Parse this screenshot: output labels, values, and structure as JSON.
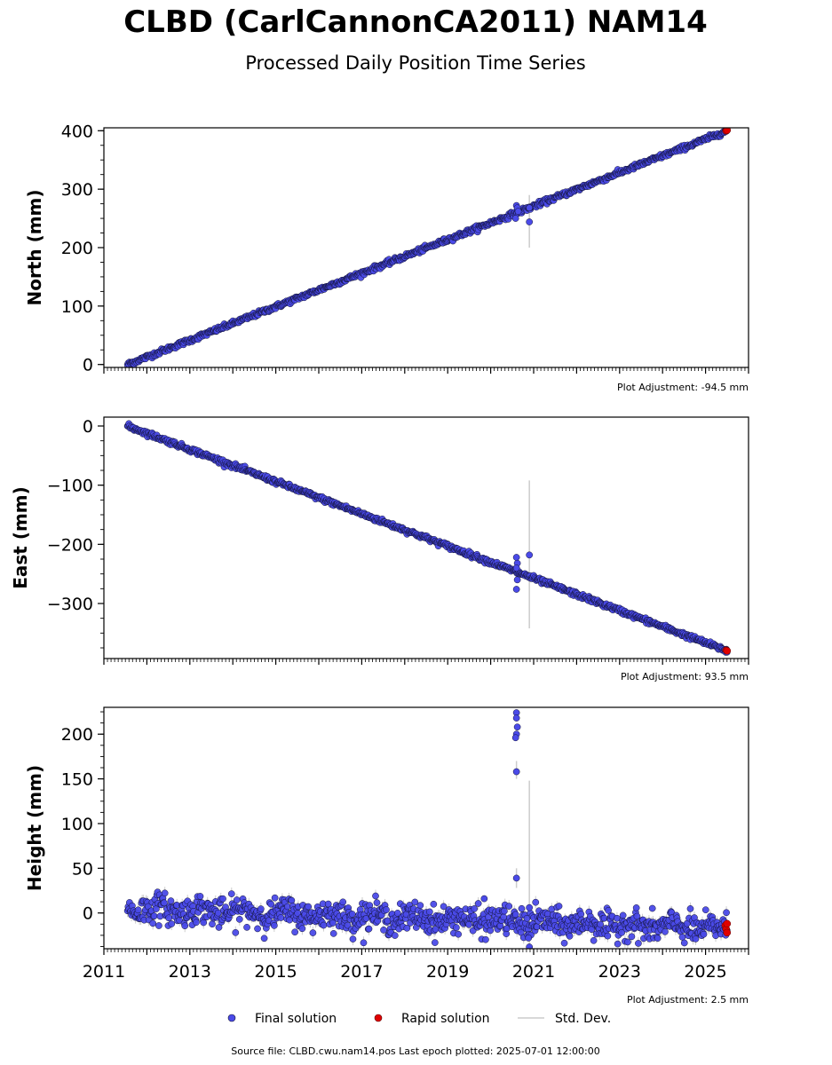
{
  "figure": {
    "title": "CLBD (CarlCannonCA2011) NAM14",
    "subtitle": "Processed Daily Position Time Series",
    "footer": "Source file: CLBD.cwu.nam14.pos  Last epoch plotted: 2025-07-01 12:00:00"
  },
  "legend": {
    "final": "Final solution",
    "rapid": "Rapid solution",
    "std": "Std. Dev."
  },
  "colors": {
    "final": "#4a4ae8",
    "final_edge": "#111133",
    "rapid": "#e00000",
    "std": "#cccccc"
  },
  "chart_data": [
    {
      "type": "scatter",
      "ylabel": "North (mm)",
      "adjustment": "Plot Adjustment: -94.5 mm",
      "xlim": [
        2011.0,
        2026.0
      ],
      "ylim": [
        -5,
        405
      ],
      "yticks": [
        0,
        100,
        200,
        300,
        400
      ],
      "ytick_labels": [
        "0",
        "100",
        "200",
        "300",
        "400"
      ],
      "trend": {
        "start": [
          2011.55,
          0
        ],
        "end": [
          2025.5,
          400
        ],
        "noise": 2
      },
      "outliers": [
        [
          2020.6,
          272
        ],
        [
          2020.62,
          268
        ],
        [
          2020.64,
          262
        ],
        [
          2020.58,
          250
        ],
        [
          2020.9,
          244
        ],
        [
          2020.9,
          268
        ]
      ],
      "stddev_bars": [
        [
          2020.9,
          200,
          290
        ]
      ],
      "rapid": [
        [
          2025.48,
          400
        ],
        [
          2025.5,
          401
        ]
      ],
      "grid": false,
      "legend_position": "bottom"
    },
    {
      "type": "scatter",
      "ylabel": "East (mm)",
      "adjustment": "Plot Adjustment: 93.5 mm",
      "xlim": [
        2011.0,
        2026.0
      ],
      "ylim": [
        -393,
        15
      ],
      "yticks": [
        0,
        -100,
        -200,
        -300
      ],
      "ytick_labels": [
        "0",
        "−100",
        "−200",
        "−300"
      ],
      "trend": {
        "start": [
          2011.55,
          0
        ],
        "end": [
          2025.5,
          -380
        ],
        "noise": 2
      },
      "outliers": [
        [
          2020.6,
          -222
        ],
        [
          2020.62,
          -232
        ],
        [
          2020.6,
          -240
        ],
        [
          2020.62,
          -260
        ],
        [
          2020.6,
          -276
        ],
        [
          2020.9,
          -218
        ]
      ],
      "stddev_bars": [
        [
          2020.9,
          -92,
          -342
        ]
      ],
      "rapid": [
        [
          2025.48,
          -379
        ],
        [
          2025.5,
          -380
        ]
      ],
      "grid": false,
      "legend_position": "bottom"
    },
    {
      "type": "scatter",
      "ylabel": "Height (mm)",
      "adjustment": "Plot Adjustment: 2.5 mm",
      "xlim": [
        2011.0,
        2026.0
      ],
      "ylim": [
        -40,
        230
      ],
      "yticks": [
        0,
        50,
        100,
        150,
        200
      ],
      "ytick_labels": [
        "0",
        "50",
        "100",
        "150",
        "200"
      ],
      "xticks": [
        2011,
        2013,
        2015,
        2017,
        2019,
        2021,
        2023,
        2025
      ],
      "xtick_labels": [
        "2011",
        "2013",
        "2015",
        "2017",
        "2019",
        "2021",
        "2023",
        "2025"
      ],
      "trend": {
        "start": [
          2011.55,
          5
        ],
        "end": [
          2025.5,
          -18
        ],
        "noise": 8
      },
      "outliers": [
        [
          2020.6,
          224
        ],
        [
          2020.6,
          218
        ],
        [
          2020.62,
          208
        ],
        [
          2020.6,
          200
        ],
        [
          2020.58,
          196
        ],
        [
          2020.6,
          158
        ],
        [
          2020.6,
          39
        ],
        [
          2019.85,
          16
        ],
        [
          2020.9,
          6
        ],
        [
          2020.9,
          -38
        ],
        [
          2020.88,
          -28
        ]
      ],
      "stddev_bars": [
        [
          2020.9,
          148,
          -40
        ],
        [
          2020.6,
          170,
          150
        ],
        [
          2020.6,
          50,
          28
        ]
      ],
      "rapid": [
        [
          2025.46,
          -14
        ],
        [
          2025.48,
          -18
        ],
        [
          2025.5,
          -22
        ],
        [
          2025.5,
          -12
        ]
      ],
      "grid": false,
      "legend_position": "bottom"
    }
  ]
}
